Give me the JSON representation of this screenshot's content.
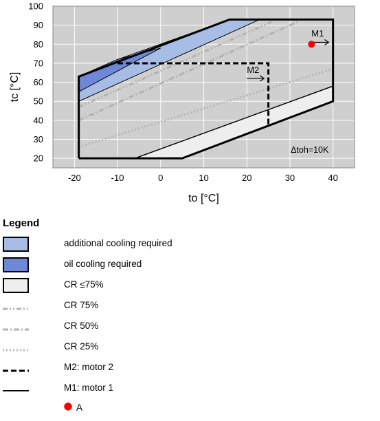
{
  "chart_data": {
    "type": "area",
    "xlabel": "to [°C]",
    "ylabel": "tc [°C]",
    "xlim": [
      -25,
      45
    ],
    "ylim": [
      15,
      100
    ],
    "x_ticks": [
      "-20",
      "-10",
      "0",
      "10",
      "20",
      "30",
      "40"
    ],
    "y_ticks": [
      "20",
      "30",
      "40",
      "50",
      "60",
      "70",
      "80",
      "90",
      "100"
    ],
    "grid": true,
    "annotation": "Δtoh=10K",
    "regions": [
      {
        "name": "additional cooling required",
        "points": [
          [
            -19,
            50
          ],
          [
            -19,
            63
          ],
          [
            -10,
            72
          ],
          [
            16,
            93
          ],
          [
            23,
            93
          ]
        ]
      },
      {
        "name": "oil cooling required",
        "points": [
          [
            -19,
            55
          ],
          [
            -19,
            63
          ],
          [
            -10,
            72
          ],
          [
            0,
            78
          ]
        ]
      },
      {
        "name": "CR ≤75%",
        "points": [
          [
            -6,
            20
          ],
          [
            5,
            20
          ],
          [
            40,
            50
          ],
          [
            40,
            58
          ]
        ]
      }
    ],
    "series": [
      {
        "name": "CR 75%",
        "points": [
          [
            -19,
            47
          ],
          [
            26,
            92
          ]
        ]
      },
      {
        "name": "CR 50%",
        "points": [
          [
            -19,
            40
          ],
          [
            32,
            92
          ]
        ]
      },
      {
        "name": "CR 25%",
        "points": [
          [
            -19,
            26
          ],
          [
            40,
            67
          ]
        ]
      },
      {
        "name": "M2: motor 2",
        "points": [
          [
            -10,
            70
          ],
          [
            25,
            70
          ],
          [
            25,
            37
          ]
        ]
      },
      {
        "name": "M1: motor 1",
        "points": [
          [
            -19,
            20
          ],
          [
            5,
            20
          ],
          [
            40,
            50
          ],
          [
            40,
            93
          ],
          [
            16,
            93
          ],
          [
            -19,
            63
          ],
          [
            -19,
            20
          ]
        ]
      }
    ],
    "arrows": [
      {
        "label": "M1",
        "at": [
          35,
          84
        ],
        "from": [
          35,
          81
        ],
        "to": [
          39,
          81
        ]
      },
      {
        "label": "M2",
        "at": [
          20,
          65
        ],
        "from": [
          20,
          62
        ],
        "to": [
          24,
          62
        ]
      }
    ],
    "point": {
      "name": "A",
      "x": 35,
      "y": 80
    }
  },
  "legend": {
    "title": "Legend",
    "items": [
      {
        "label": "additional cooling required"
      },
      {
        "label": "oil cooling required"
      },
      {
        "label": "CR ≤75%"
      },
      {
        "label": "CR 75%"
      },
      {
        "label": "CR 50%"
      },
      {
        "label": "CR 25%"
      },
      {
        "label": "M2: motor 2"
      },
      {
        "label": "M1: motor 1"
      },
      {
        "label": "A"
      }
    ]
  },
  "colors": {
    "plot_bg": "#cfcfcf",
    "grid": "#ffffff",
    "additional_cooling": "#a8bde6",
    "oil_cooling": "#6e88d8",
    "cr_le_75": "#eeeeee",
    "cr_lines": "#b3b3b3",
    "outline": "#000000",
    "point": "#ff0000"
  }
}
